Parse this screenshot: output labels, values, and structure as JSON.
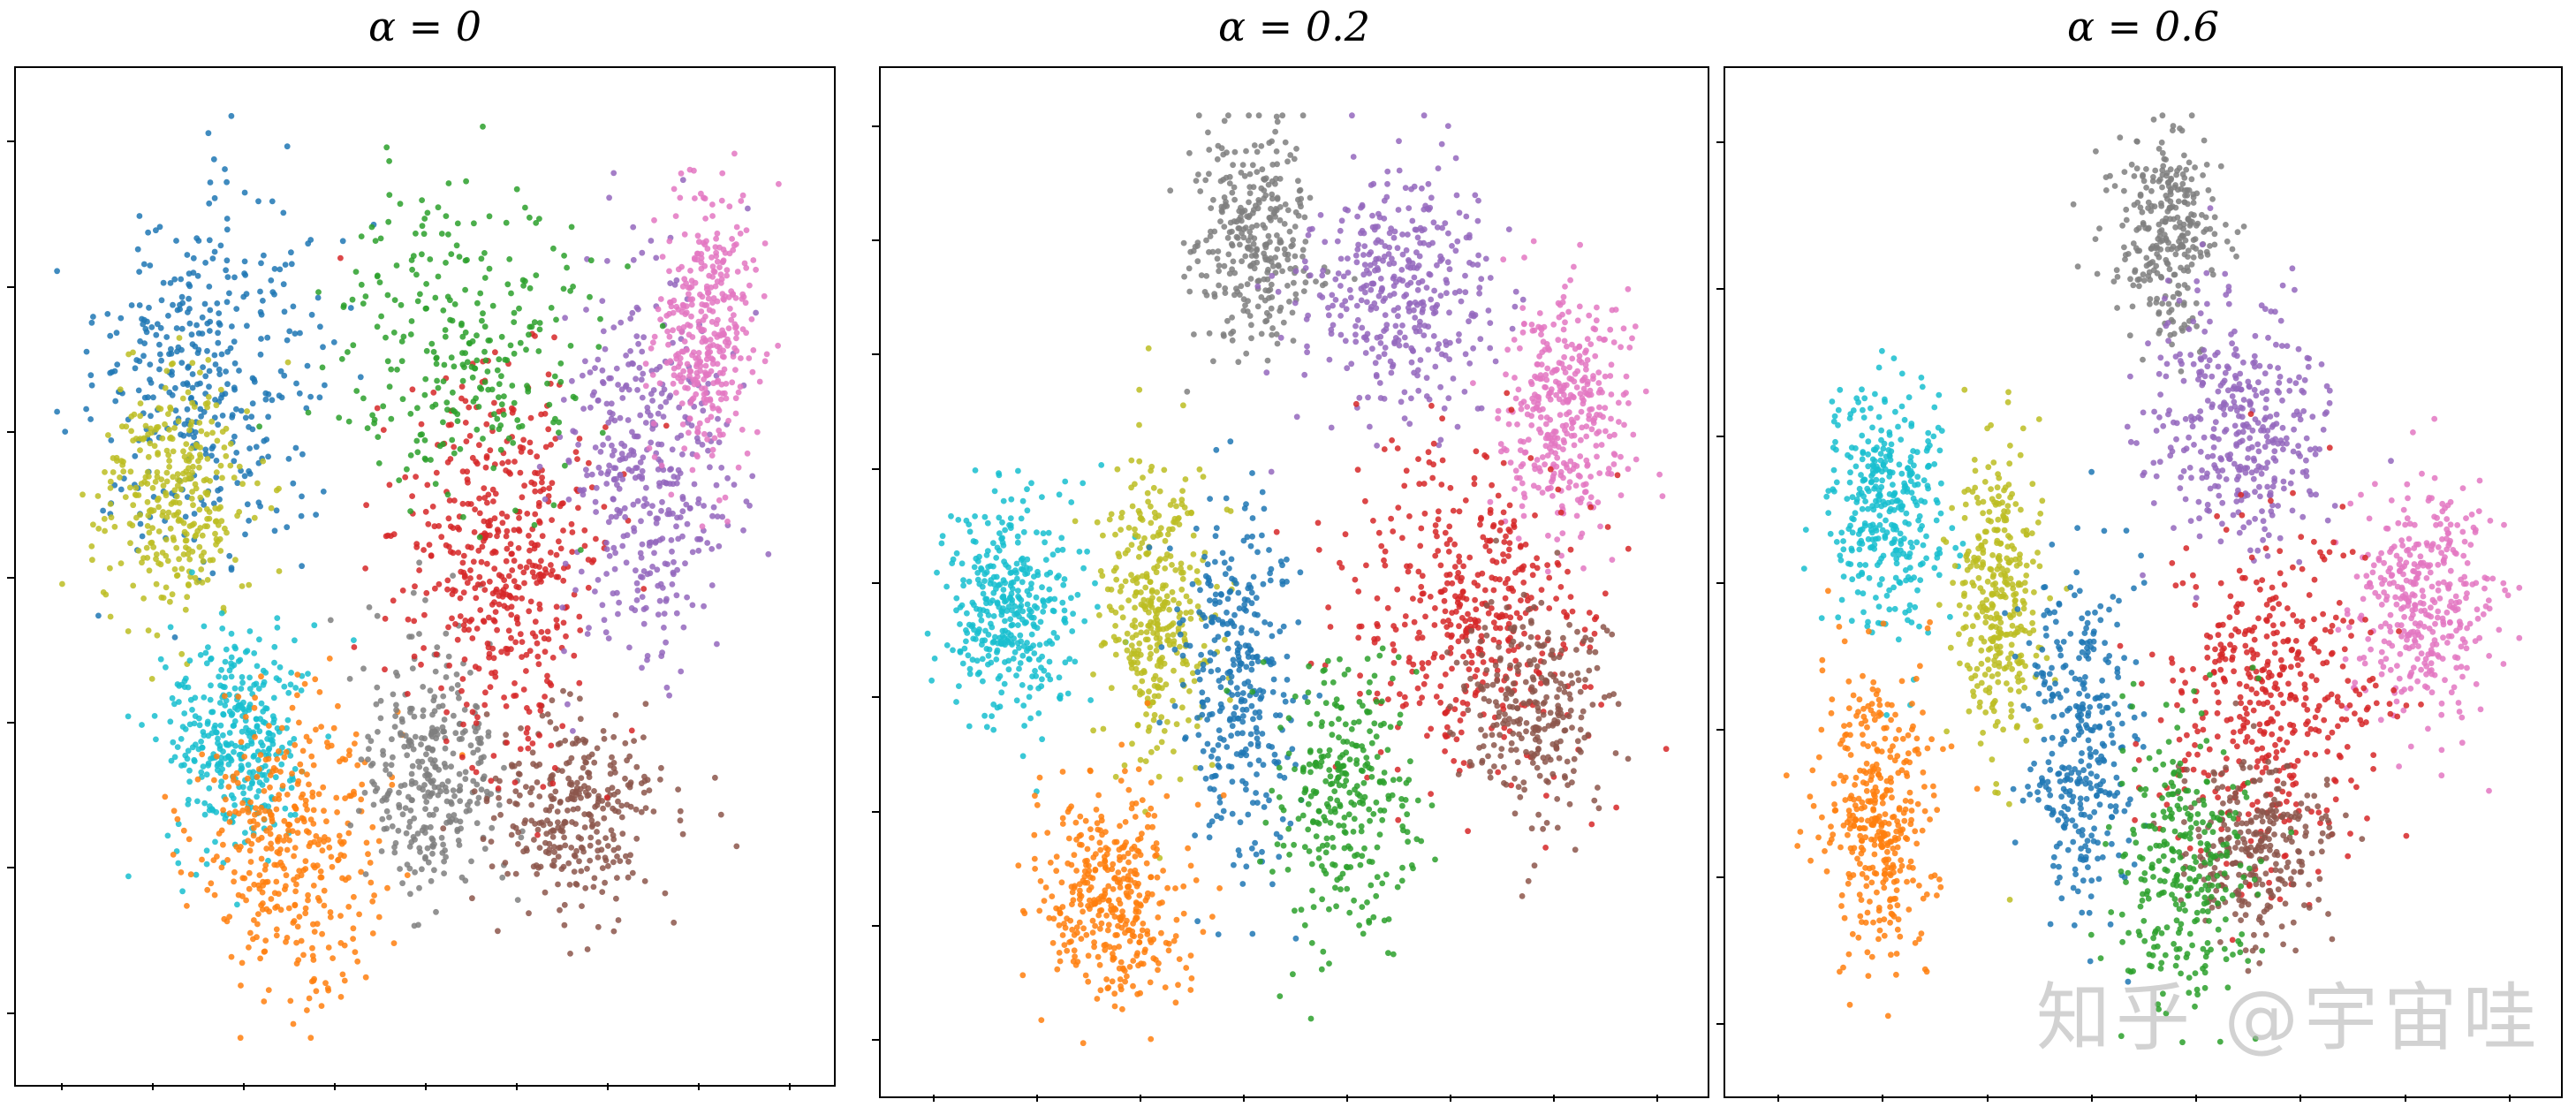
{
  "watermark": "知乎 @宇宙哇",
  "chart_data": [
    {
      "type": "scatter",
      "title": "α = 0",
      "xlabel": "",
      "ylabel": "",
      "legend": "none",
      "grid": false,
      "ticks": {
        "x": 9,
        "y": 7,
        "labels": "none"
      },
      "palette": {
        "blue": "#1f77b4",
        "orange": "#ff7f0e",
        "green": "#2ca02c",
        "red": "#d62728",
        "purple": "#9467bd",
        "brown": "#8c564b",
        "pink": "#e377c2",
        "gray": "#7f7f7f",
        "olive": "#bcbd22",
        "cyan": "#17becf"
      },
      "clusters": [
        {
          "color": "blue",
          "center": [
            0.22,
            0.3
          ],
          "spread": [
            0.13,
            0.16
          ],
          "count": 380
        },
        {
          "color": "olive",
          "center": [
            0.18,
            0.42
          ],
          "spread": [
            0.09,
            0.12
          ],
          "count": 330
        },
        {
          "color": "cyan",
          "center": [
            0.26,
            0.66
          ],
          "spread": [
            0.08,
            0.1
          ],
          "count": 360
        },
        {
          "color": "orange",
          "center": [
            0.33,
            0.78
          ],
          "spread": [
            0.11,
            0.13
          ],
          "count": 380
        },
        {
          "color": "gray",
          "center": [
            0.51,
            0.7
          ],
          "spread": [
            0.08,
            0.12
          ],
          "count": 330
        },
        {
          "color": "brown",
          "center": [
            0.69,
            0.74
          ],
          "spread": [
            0.1,
            0.09
          ],
          "count": 320
        },
        {
          "color": "red",
          "center": [
            0.6,
            0.48
          ],
          "spread": [
            0.12,
            0.18
          ],
          "count": 480
        },
        {
          "color": "purple",
          "center": [
            0.78,
            0.4
          ],
          "spread": [
            0.1,
            0.16
          ],
          "count": 400
        },
        {
          "color": "pink",
          "center": [
            0.86,
            0.25
          ],
          "spread": [
            0.06,
            0.12
          ],
          "count": 360
        },
        {
          "color": "green",
          "center": [
            0.55,
            0.26
          ],
          "spread": [
            0.14,
            0.15
          ],
          "count": 280
        }
      ]
    },
    {
      "type": "scatter",
      "title": "α = 0.2",
      "xlabel": "",
      "ylabel": "",
      "legend": "none",
      "grid": false,
      "ticks": {
        "x": 8,
        "y": 9,
        "labels": "none"
      },
      "palette": {
        "blue": "#1f77b4",
        "orange": "#ff7f0e",
        "green": "#2ca02c",
        "red": "#d62728",
        "purple": "#9467bd",
        "brown": "#8c564b",
        "pink": "#e377c2",
        "gray": "#7f7f7f",
        "olive": "#bcbd22",
        "cyan": "#17becf"
      },
      "clusters": [
        {
          "color": "gray",
          "center": [
            0.45,
            0.15
          ],
          "spread": [
            0.07,
            0.1
          ],
          "count": 320
        },
        {
          "color": "purple",
          "center": [
            0.63,
            0.2
          ],
          "spread": [
            0.11,
            0.12
          ],
          "count": 380
        },
        {
          "color": "pink",
          "center": [
            0.84,
            0.33
          ],
          "spread": [
            0.08,
            0.11
          ],
          "count": 380
        },
        {
          "color": "cyan",
          "center": [
            0.14,
            0.53
          ],
          "spread": [
            0.08,
            0.1
          ],
          "count": 380
        },
        {
          "color": "olive",
          "center": [
            0.33,
            0.53
          ],
          "spread": [
            0.06,
            0.14
          ],
          "count": 360
        },
        {
          "color": "blue",
          "center": [
            0.43,
            0.6
          ],
          "spread": [
            0.07,
            0.17
          ],
          "count": 330
        },
        {
          "color": "orange",
          "center": [
            0.27,
            0.82
          ],
          "spread": [
            0.08,
            0.1
          ],
          "count": 380
        },
        {
          "color": "red",
          "center": [
            0.72,
            0.53
          ],
          "spread": [
            0.14,
            0.14
          ],
          "count": 440
        },
        {
          "color": "brown",
          "center": [
            0.8,
            0.63
          ],
          "spread": [
            0.08,
            0.1
          ],
          "count": 280
        },
        {
          "color": "green",
          "center": [
            0.56,
            0.72
          ],
          "spread": [
            0.08,
            0.13
          ],
          "count": 300
        }
      ]
    },
    {
      "type": "scatter",
      "title": "α = 0.6",
      "xlabel": "",
      "ylabel": "",
      "legend": "none",
      "grid": false,
      "ticks": {
        "x": 8,
        "y": 7,
        "labels": "none"
      },
      "palette": {
        "blue": "#1f77b4",
        "orange": "#ff7f0e",
        "green": "#2ca02c",
        "red": "#d62728",
        "purple": "#9467bd",
        "brown": "#8c564b",
        "pink": "#e377c2",
        "gray": "#7f7f7f",
        "olive": "#bcbd22",
        "cyan": "#17becf"
      },
      "clusters": [
        {
          "color": "gray",
          "center": [
            0.53,
            0.14
          ],
          "spread": [
            0.06,
            0.1
          ],
          "count": 300
        },
        {
          "color": "purple",
          "center": [
            0.62,
            0.34
          ],
          "spread": [
            0.1,
            0.12
          ],
          "count": 380
        },
        {
          "color": "pink",
          "center": [
            0.85,
            0.52
          ],
          "spread": [
            0.08,
            0.11
          ],
          "count": 380
        },
        {
          "color": "cyan",
          "center": [
            0.18,
            0.43
          ],
          "spread": [
            0.07,
            0.11
          ],
          "count": 360
        },
        {
          "color": "olive",
          "center": [
            0.32,
            0.52
          ],
          "spread": [
            0.05,
            0.14
          ],
          "count": 340
        },
        {
          "color": "blue",
          "center": [
            0.42,
            0.65
          ],
          "spread": [
            0.06,
            0.17
          ],
          "count": 330
        },
        {
          "color": "orange",
          "center": [
            0.17,
            0.73
          ],
          "spread": [
            0.06,
            0.13
          ],
          "count": 380
        },
        {
          "color": "red",
          "center": [
            0.66,
            0.62
          ],
          "spread": [
            0.12,
            0.15
          ],
          "count": 440
        },
        {
          "color": "brown",
          "center": [
            0.64,
            0.77
          ],
          "spread": [
            0.08,
            0.09
          ],
          "count": 280
        },
        {
          "color": "green",
          "center": [
            0.55,
            0.79
          ],
          "spread": [
            0.08,
            0.13
          ],
          "count": 290
        }
      ]
    }
  ]
}
